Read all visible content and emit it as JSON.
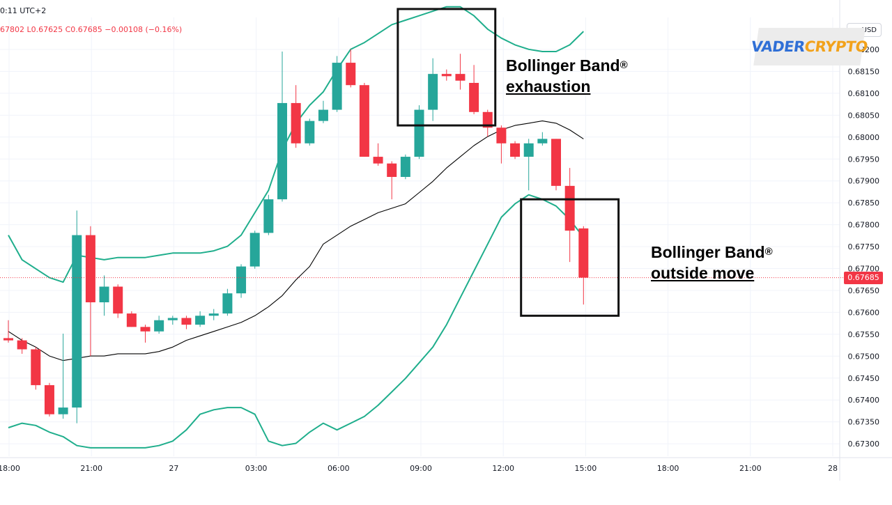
{
  "header": {
    "time_text": "0:11 UTC+2",
    "ohlc_text": "67802  L0.67625  C0.67685  −0.00108 (−0.16%)"
  },
  "currency_label": "USD",
  "watermark": {
    "part1": "VADER",
    "part2": "CRYPTO"
  },
  "annotations": {
    "exhaustion": {
      "line1": "Bollinger Band",
      "mark": "®",
      "line2": "exhaustion"
    },
    "outside": {
      "line1": "Bollinger Band",
      "mark": "®",
      "line2": "outside move"
    }
  },
  "current_price_label": "0.67685",
  "colors": {
    "up": "#26a69a",
    "down": "#f23645",
    "band": "#1fae8c",
    "middle": "#000000",
    "price_line": "#f23645",
    "grid": "#f0f3fa"
  },
  "chart_data": {
    "type": "candlestick",
    "title": "",
    "ylim": [
      0.6728,
      0.6826
    ],
    "y_ticks": [
      "0.68200",
      "0.68150",
      "0.68100",
      "0.68050",
      "0.68000",
      "0.67950",
      "0.67900",
      "0.67850",
      "0.67800",
      "0.67750",
      "0.67700",
      "0.67650",
      "0.67600",
      "0.67550",
      "0.67500",
      "0.67450",
      "0.67400",
      "0.67350",
      "0.67300"
    ],
    "x_ticks": [
      "18:00",
      "21:00",
      "27",
      "03:00",
      "06:00",
      "09:00",
      "12:00",
      "15:00",
      "18:00",
      "21:00",
      "28"
    ],
    "grid": true,
    "candles": [
      {
        "o": 0.6755,
        "h": 0.6759,
        "l": 0.6754,
        "c": 0.67545
      },
      {
        "o": 0.67545,
        "h": 0.6755,
        "l": 0.67515,
        "c": 0.67525
      },
      {
        "o": 0.67525,
        "h": 0.6753,
        "l": 0.67435,
        "c": 0.67445
      },
      {
        "o": 0.67445,
        "h": 0.6745,
        "l": 0.67375,
        "c": 0.6738
      },
      {
        "o": 0.6738,
        "h": 0.6756,
        "l": 0.6737,
        "c": 0.67395
      },
      {
        "o": 0.67395,
        "h": 0.67835,
        "l": 0.6736,
        "c": 0.6778
      },
      {
        "o": 0.6778,
        "h": 0.678,
        "l": 0.6751,
        "c": 0.6763
      },
      {
        "o": 0.6763,
        "h": 0.6769,
        "l": 0.676,
        "c": 0.67665
      },
      {
        "o": 0.67665,
        "h": 0.6767,
        "l": 0.67595,
        "c": 0.67605
      },
      {
        "o": 0.67605,
        "h": 0.6761,
        "l": 0.67575,
        "c": 0.67575
      },
      {
        "o": 0.67575,
        "h": 0.6758,
        "l": 0.6754,
        "c": 0.67565
      },
      {
        "o": 0.67565,
        "h": 0.676,
        "l": 0.6756,
        "c": 0.6759
      },
      {
        "o": 0.6759,
        "h": 0.676,
        "l": 0.6758,
        "c": 0.67595
      },
      {
        "o": 0.67595,
        "h": 0.676,
        "l": 0.6757,
        "c": 0.6758
      },
      {
        "o": 0.6758,
        "h": 0.6761,
        "l": 0.67575,
        "c": 0.676
      },
      {
        "o": 0.676,
        "h": 0.67615,
        "l": 0.6759,
        "c": 0.67605
      },
      {
        "o": 0.67605,
        "h": 0.6766,
        "l": 0.676,
        "c": 0.6765
      },
      {
        "o": 0.6765,
        "h": 0.67715,
        "l": 0.6764,
        "c": 0.6771
      },
      {
        "o": 0.6771,
        "h": 0.6779,
        "l": 0.67705,
        "c": 0.67785
      },
      {
        "o": 0.67785,
        "h": 0.6787,
        "l": 0.6778,
        "c": 0.6786
      },
      {
        "o": 0.6786,
        "h": 0.6819,
        "l": 0.67855,
        "c": 0.68075
      },
      {
        "o": 0.68075,
        "h": 0.68115,
        "l": 0.67975,
        "c": 0.67985
      },
      {
        "o": 0.67985,
        "h": 0.6804,
        "l": 0.6798,
        "c": 0.68035
      },
      {
        "o": 0.68035,
        "h": 0.6808,
        "l": 0.6803,
        "c": 0.6806
      },
      {
        "o": 0.6806,
        "h": 0.6818,
        "l": 0.68055,
        "c": 0.68165
      },
      {
        "o": 0.68165,
        "h": 0.68195,
        "l": 0.6811,
        "c": 0.68115
      },
      {
        "o": 0.68115,
        "h": 0.6812,
        "l": 0.67955,
        "c": 0.67955
      },
      {
        "o": 0.67955,
        "h": 0.67985,
        "l": 0.67935,
        "c": 0.6794
      },
      {
        "o": 0.6794,
        "h": 0.67945,
        "l": 0.6786,
        "c": 0.6791
      },
      {
        "o": 0.6791,
        "h": 0.6796,
        "l": 0.67905,
        "c": 0.67955
      },
      {
        "o": 0.67955,
        "h": 0.6807,
        "l": 0.6795,
        "c": 0.6806
      },
      {
        "o": 0.6806,
        "h": 0.68175,
        "l": 0.68035,
        "c": 0.6814
      },
      {
        "o": 0.6814,
        "h": 0.6815,
        "l": 0.68125,
        "c": 0.68135
      },
      {
        "o": 0.6814,
        "h": 0.68185,
        "l": 0.68105,
        "c": 0.68125
      },
      {
        "o": 0.6812,
        "h": 0.6816,
        "l": 0.6805,
        "c": 0.68055
      },
      {
        "o": 0.68055,
        "h": 0.6806,
        "l": 0.68,
        "c": 0.6802
      },
      {
        "o": 0.6802,
        "h": 0.68025,
        "l": 0.6794,
        "c": 0.67985
      },
      {
        "o": 0.67985,
        "h": 0.6799,
        "l": 0.6795,
        "c": 0.67955
      },
      {
        "o": 0.67955,
        "h": 0.67995,
        "l": 0.6788,
        "c": 0.67985
      },
      {
        "o": 0.67985,
        "h": 0.6801,
        "l": 0.6798,
        "c": 0.67995
      },
      {
        "o": 0.67995,
        "h": 0.67995,
        "l": 0.6788,
        "c": 0.6789
      },
      {
        "o": 0.6789,
        "h": 0.6793,
        "l": 0.6772,
        "c": 0.6779
      },
      {
        "o": 0.67795,
        "h": 0.678,
        "l": 0.67625,
        "c": 0.67685
      }
    ],
    "upper_band": [
      0.6778,
      0.67725,
      0.67705,
      0.67685,
      0.67675,
      0.67735,
      0.6773,
      0.67725,
      0.6773,
      0.6773,
      0.6773,
      0.67735,
      0.6774,
      0.6774,
      0.6774,
      0.67745,
      0.67755,
      0.6778,
      0.6783,
      0.6788,
      0.6797,
      0.6803,
      0.6807,
      0.681,
      0.6815,
      0.68195,
      0.6821,
      0.6823,
      0.6825,
      0.6826,
      0.6827,
      0.6828,
      0.6829,
      0.6829,
      0.6827,
      0.6824,
      0.6822,
      0.68205,
      0.68195,
      0.6819,
      0.6819,
      0.68205,
      0.68235
    ],
    "middle_band": [
      0.67565,
      0.67545,
      0.6753,
      0.6751,
      0.675,
      0.67505,
      0.6751,
      0.6751,
      0.67515,
      0.67515,
      0.67515,
      0.6752,
      0.6753,
      0.67545,
      0.67555,
      0.67565,
      0.67575,
      0.67585,
      0.676,
      0.6762,
      0.67645,
      0.6768,
      0.6771,
      0.6776,
      0.6778,
      0.678,
      0.67815,
      0.6783,
      0.6784,
      0.6785,
      0.67875,
      0.679,
      0.6793,
      0.67955,
      0.6798,
      0.68,
      0.68015,
      0.68025,
      0.6803,
      0.68035,
      0.6803,
      0.68015,
      0.67995
    ],
    "lower_band": [
      0.6735,
      0.6736,
      0.67355,
      0.6734,
      0.6733,
      0.6731,
      0.67305,
      0.67305,
      0.67305,
      0.67305,
      0.67305,
      0.6731,
      0.6732,
      0.67345,
      0.6738,
      0.6739,
      0.67395,
      0.67395,
      0.6738,
      0.6732,
      0.6731,
      0.67315,
      0.6734,
      0.6736,
      0.67345,
      0.6736,
      0.67375,
      0.674,
      0.6743,
      0.6746,
      0.67495,
      0.6753,
      0.6758,
      0.6764,
      0.677,
      0.6776,
      0.6782,
      0.6785,
      0.6787,
      0.6786,
      0.67845,
      0.67815,
      0.67775
    ]
  }
}
